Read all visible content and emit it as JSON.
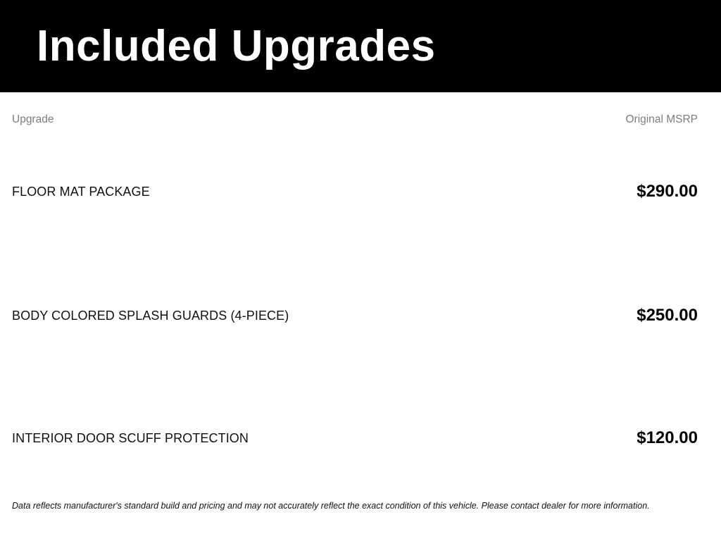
{
  "header": {
    "title": "Included Upgrades"
  },
  "table": {
    "columns": {
      "upgrade": "Upgrade",
      "msrp": "Original MSRP"
    },
    "rows": [
      {
        "name": "FLOOR MAT PACKAGE",
        "msrp": "$290.00"
      },
      {
        "name": "BODY COLORED SPLASH GUARDS (4-PIECE)",
        "msrp": "$250.00"
      },
      {
        "name": "INTERIOR DOOR SCUFF PROTECTION",
        "msrp": "$120.00"
      }
    ]
  },
  "footer": {
    "disclaimer": "Data reflects manufacturer's standard build and pricing and may not accurately reflect the exact condition of this vehicle. Please contact dealer for more information."
  },
  "colors": {
    "header_background": "#000000",
    "header_title_text": "#ffffff",
    "column_header_text": "#7d7d7d",
    "row_name_text": "#101010",
    "price_text": "#000000",
    "page_background": "#ffffff"
  }
}
